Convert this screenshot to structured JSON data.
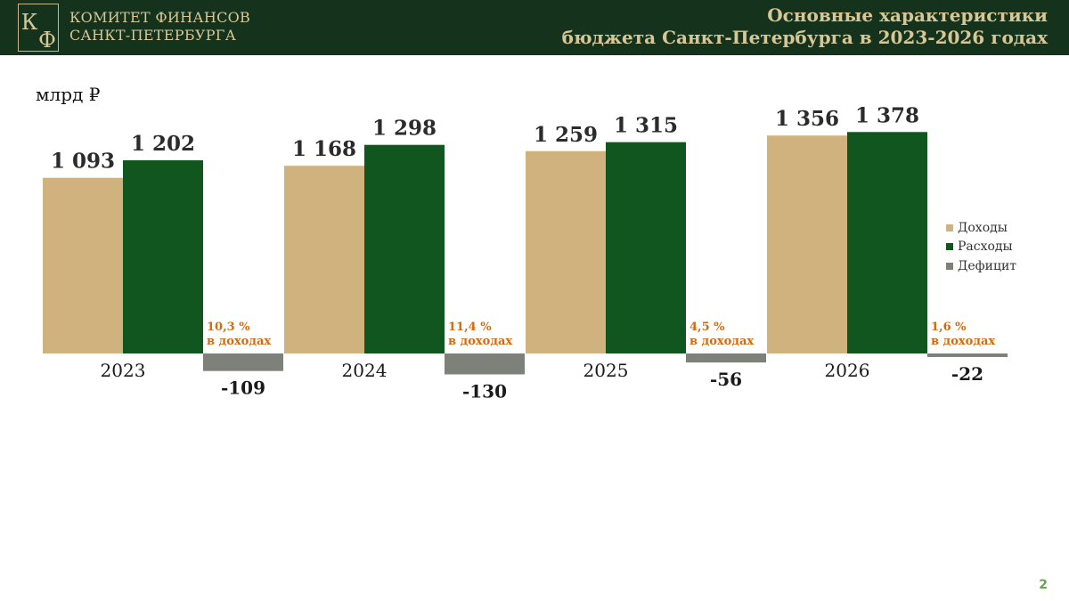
{
  "header": {
    "logo_letters": "КФ",
    "org_line1": "КОМИТЕТ ФИНАНСОВ",
    "org_line2": "САНКТ-ПЕТЕРБУРГА",
    "title_line1": "Основные характеристики",
    "title_line2": "бюджета Санкт-Петербурга в 2023-2026 годах"
  },
  "unit_label": "млрд ₽",
  "page_number": "2",
  "colors": {
    "header_bg": "#15331c",
    "header_text": "#d8c796",
    "income": "#cfb27d",
    "expense": "#12561f",
    "deficit": "#7d817a",
    "share_text": "#d46a10"
  },
  "chart_data": {
    "type": "bar",
    "categories": [
      "2023",
      "2024",
      "2025",
      "2026"
    ],
    "series": [
      {
        "name": "Доходы",
        "values": [
          1093,
          1168,
          1259,
          1356
        ],
        "labels": [
          "1 093",
          "1 168",
          "1 259",
          "1 356"
        ],
        "color": "#cfb27d"
      },
      {
        "name": "Расходы",
        "values": [
          1202,
          1298,
          1315,
          1378
        ],
        "labels": [
          "1 202",
          "1 298",
          "1 315",
          "1 378"
        ],
        "color": "#12561f"
      },
      {
        "name": "Дефицит",
        "values": [
          -109,
          -130,
          -56,
          -22
        ],
        "labels": [
          "-109",
          "-130",
          "-56",
          "-22"
        ],
        "color": "#7d817a"
      }
    ],
    "annotations": [
      {
        "pct": "10,3 %",
        "text": "в доходах"
      },
      {
        "pct": "11,4 %",
        "text": "в доходах"
      },
      {
        "pct": "4,5 %",
        "text": "в доходах"
      },
      {
        "pct": "1,6 %",
        "text": "в доходах"
      }
    ],
    "ylabel": "млрд ₽",
    "legend_position": "right",
    "grid": false
  }
}
